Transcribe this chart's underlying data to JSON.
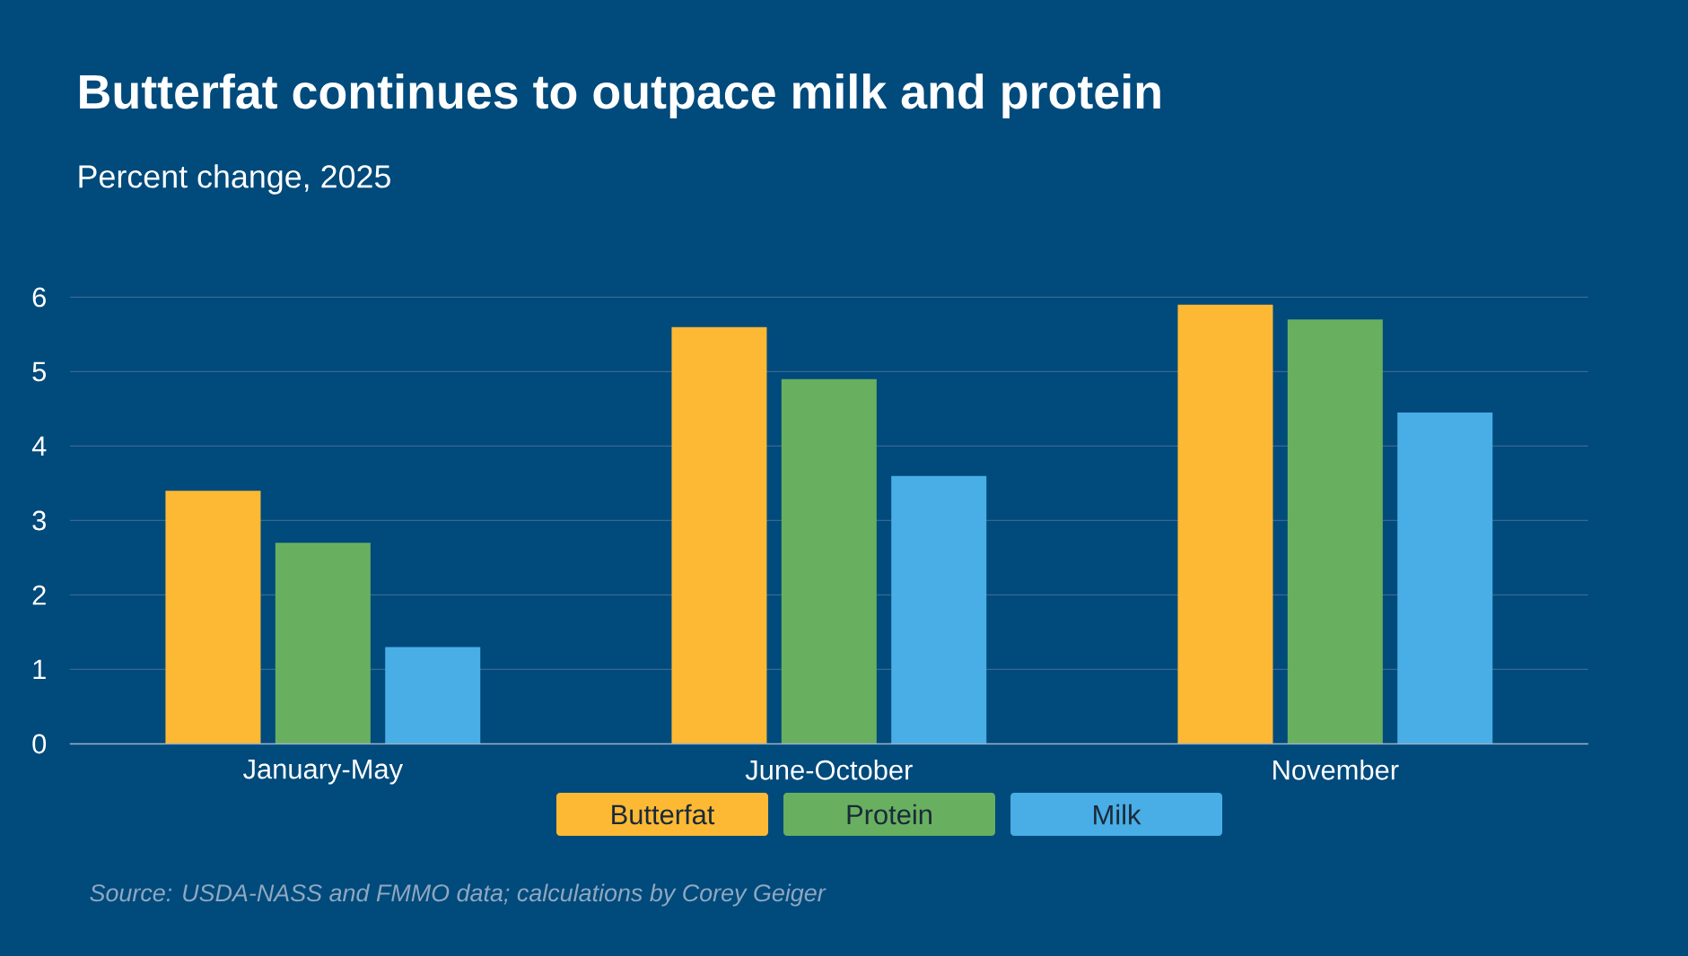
{
  "chart_data": {
    "type": "bar",
    "title": "Butterfat continues to outpace milk and protein",
    "subtitle": "Percent change, 2025",
    "categories": [
      "January-May",
      "June-October",
      "November"
    ],
    "series": [
      {
        "name": "Butterfat",
        "color": "#fdb933",
        "values": [
          3.4,
          5.6,
          5.9
        ]
      },
      {
        "name": "Protein",
        "color": "#68b05f",
        "values": [
          2.7,
          4.9,
          5.7
        ]
      },
      {
        "name": "Milk",
        "color": "#49aee6",
        "values": [
          1.3,
          3.6,
          4.45
        ]
      }
    ],
    "ylim": [
      0,
      6
    ],
    "yticks": [
      0,
      1,
      2,
      3,
      4,
      5,
      6
    ],
    "grid": "y",
    "legend": "bottom",
    "annotations": [
      "Source: USDA-NASS and FMMO data; calculations by Corey Geiger"
    ]
  }
}
